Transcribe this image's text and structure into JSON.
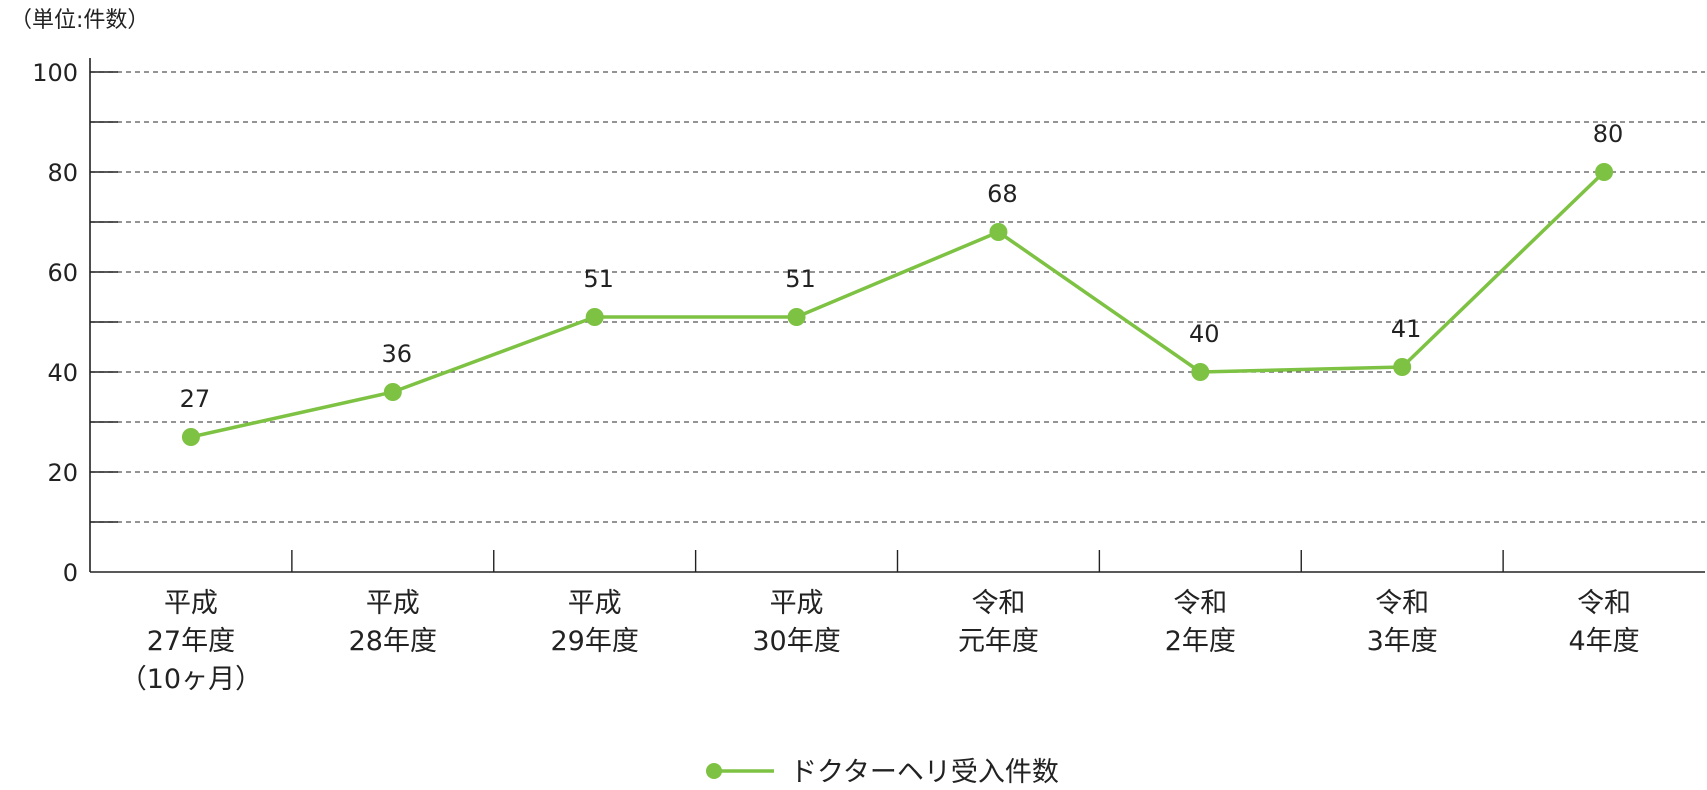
{
  "chart_data": {
    "type": "line",
    "unit_label": "（単位:件数）",
    "categories": [
      [
        "平成",
        "27年度",
        "（10ヶ月）"
      ],
      [
        "平成",
        "28年度"
      ],
      [
        "平成",
        "29年度"
      ],
      [
        "平成",
        "30年度"
      ],
      [
        "令和",
        "元年度"
      ],
      [
        "令和",
        "2年度"
      ],
      [
        "令和",
        "3年度"
      ],
      [
        "令和",
        "4年度"
      ]
    ],
    "series": [
      {
        "name": "ドクターヘリ受入件数",
        "values": [
          27,
          36,
          51,
          51,
          68,
          40,
          41,
          80
        ],
        "labels": [
          "27",
          "36",
          "51",
          "51",
          "68",
          "40",
          "41",
          "80"
        ]
      }
    ],
    "ylim": [
      0,
      100
    ],
    "yticks": [
      0,
      20,
      40,
      60,
      80,
      100
    ],
    "minor_step": 10,
    "grid": "dashed horizontal",
    "legend_position": "bottom-center",
    "colors": {
      "series": "#7dc242",
      "axis": "#222222",
      "grid": "#555555",
      "text": "#222222"
    }
  }
}
